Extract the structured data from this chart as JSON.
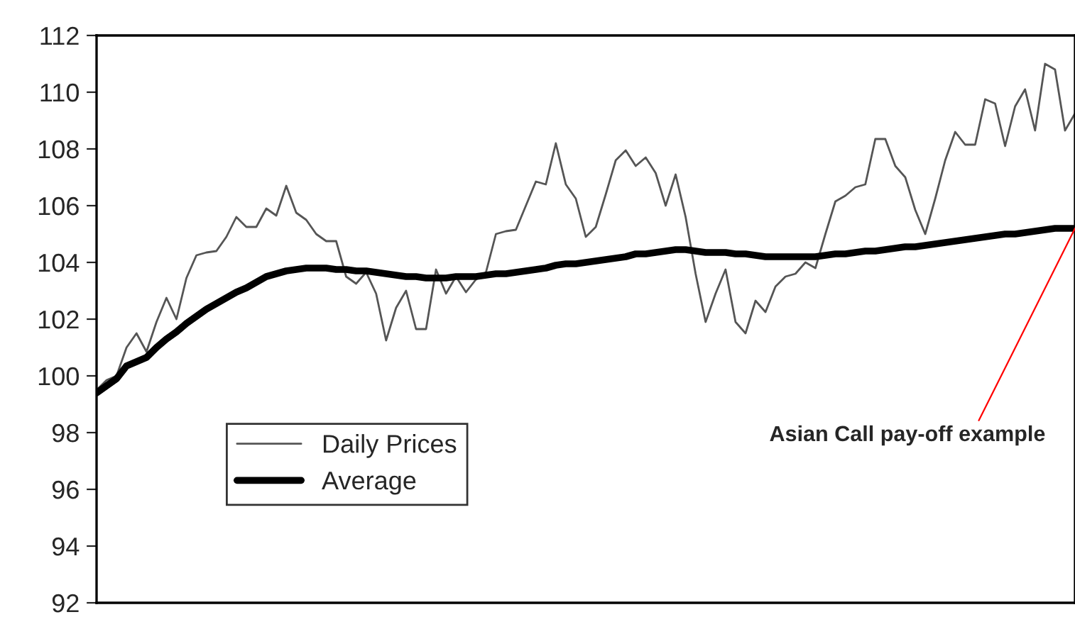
{
  "chart_data": {
    "type": "line",
    "categories": [
      null,
      null,
      null,
      null,
      null,
      null,
      null,
      null,
      null,
      null,
      null,
      null,
      null,
      null,
      null,
      null,
      null,
      null,
      null,
      null,
      null,
      null,
      null,
      null,
      null,
      null,
      null,
      null,
      null,
      null,
      null,
      null,
      null,
      null,
      null,
      null,
      null,
      null,
      null,
      null,
      null,
      null,
      null,
      null,
      null,
      null,
      null,
      null,
      null,
      null,
      null,
      null,
      null,
      null,
      null,
      null,
      null,
      null,
      null,
      null,
      null,
      null,
      null,
      null,
      null,
      null,
      null,
      null,
      null,
      null,
      null,
      null,
      null,
      null,
      null,
      null,
      null,
      null,
      null,
      null,
      null,
      null,
      null,
      null,
      null,
      null,
      null,
      null,
      null,
      null,
      null,
      null,
      null,
      null,
      null,
      null,
      null,
      null,
      null
    ],
    "series": [
      {
        "name": "Daily Prices",
        "color": "#555555",
        "values": [
          99.5,
          99.85,
          100.0,
          101.0,
          101.5,
          100.85,
          101.9,
          102.75,
          102.0,
          103.45,
          104.25,
          104.35,
          104.4,
          104.9,
          105.6,
          105.25,
          105.25,
          105.9,
          105.65,
          106.7,
          105.75,
          105.5,
          105.0,
          104.75,
          104.75,
          103.5,
          103.25,
          103.65,
          102.9,
          101.25,
          102.4,
          103.0,
          101.65,
          101.65,
          103.75,
          102.9,
          103.5,
          102.95,
          103.4,
          103.65,
          105.0,
          105.1,
          105.15,
          106.0,
          106.85,
          106.75,
          108.2,
          106.75,
          106.25,
          104.9,
          105.25,
          106.4,
          107.6,
          107.95,
          107.4,
          107.7,
          107.15,
          106.0,
          107.1,
          105.6,
          103.6,
          101.9,
          102.9,
          103.75,
          101.9,
          101.5,
          102.65,
          102.25,
          103.15,
          103.5,
          103.6,
          104.0,
          103.8,
          105.0,
          106.15,
          106.35,
          106.65,
          106.75,
          108.35,
          108.35,
          107.4,
          107.0,
          105.85,
          105.0,
          106.25,
          107.6,
          108.6,
          108.15,
          108.15,
          109.75,
          109.6,
          108.1,
          109.5,
          110.1,
          108.65,
          111.0,
          110.8,
          108.65,
          109.25
        ]
      },
      {
        "name": "Average",
        "color": "#000000",
        "values": [
          99.4,
          99.65,
          99.9,
          100.35,
          100.5,
          100.65,
          101.0,
          101.3,
          101.55,
          101.85,
          102.1,
          102.35,
          102.55,
          102.75,
          102.95,
          103.1,
          103.3,
          103.5,
          103.6,
          103.7,
          103.75,
          103.8,
          103.8,
          103.8,
          103.75,
          103.75,
          103.7,
          103.7,
          103.65,
          103.6,
          103.55,
          103.5,
          103.5,
          103.45,
          103.45,
          103.45,
          103.5,
          103.5,
          103.5,
          103.55,
          103.6,
          103.6,
          103.65,
          103.7,
          103.75,
          103.8,
          103.9,
          103.95,
          103.95,
          104.0,
          104.05,
          104.1,
          104.15,
          104.2,
          104.3,
          104.3,
          104.35,
          104.4,
          104.45,
          104.45,
          104.4,
          104.35,
          104.35,
          104.35,
          104.3,
          104.3,
          104.25,
          104.2,
          104.2,
          104.2,
          104.2,
          104.2,
          104.2,
          104.25,
          104.3,
          104.3,
          104.35,
          104.4,
          104.4,
          104.45,
          104.5,
          104.55,
          104.55,
          104.6,
          104.65,
          104.7,
          104.75,
          104.8,
          104.85,
          104.9,
          104.95,
          105.0,
          105.0,
          105.05,
          105.1,
          105.15,
          105.2,
          105.2,
          105.2
        ]
      }
    ],
    "ylim": [
      92,
      112
    ],
    "yticks": [
      92,
      94,
      96,
      98,
      100,
      102,
      104,
      106,
      108,
      110,
      112
    ],
    "tick_labels": "y",
    "grid": false,
    "legend": "left",
    "marker": "none",
    "line_style": "solid",
    "annotations": [
      "Asian Call pay-off example"
    ]
  }
}
